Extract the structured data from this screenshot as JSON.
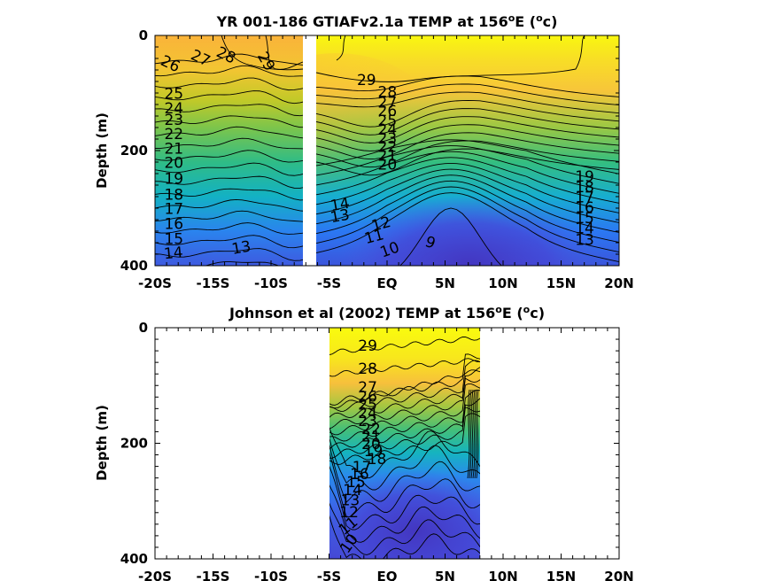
{
  "chart_data": [
    {
      "type": "heatmap",
      "title_main": "YR 001-186 GTIAFv2.1a TEMP at 156",
      "title_sup": "o",
      "title_mid": "E (",
      "title_sup2": "o",
      "title_end": "c)",
      "ylabel": "Depth (m)",
      "xlim": [
        -20,
        20
      ],
      "ylim": [
        400,
        0
      ],
      "x_ticks": [
        {
          "value": -20,
          "label": "-20S"
        },
        {
          "value": -15,
          "label": "-15S"
        },
        {
          "value": -10,
          "label": "-10S"
        },
        {
          "value": -5,
          "label": "-5S"
        },
        {
          "value": 0,
          "label": "EQ"
        },
        {
          "value": 5,
          "label": "5N"
        },
        {
          "value": 10,
          "label": "10N"
        },
        {
          "value": 15,
          "label": "15N"
        },
        {
          "value": 20,
          "label": "20N"
        }
      ],
      "y_ticks": [
        0,
        200,
        400
      ],
      "gap_lon": [
        -7.3,
        -6.5
      ],
      "contour_levels": [
        9,
        10,
        11,
        12,
        13,
        14,
        15,
        16,
        17,
        18,
        19,
        20,
        21,
        22,
        23,
        24,
        25,
        26,
        27,
        28,
        29
      ],
      "contour_labels": [
        {
          "x": -19.6,
          "y": 50,
          "t": "26",
          "r": 25
        },
        {
          "x": -17.0,
          "y": 40,
          "t": "27",
          "r": 25
        },
        {
          "x": -14.8,
          "y": 35,
          "t": "28",
          "r": 25
        },
        {
          "x": -11.2,
          "y": 35,
          "t": "29",
          "r": 60
        },
        {
          "x": -19.2,
          "y": 110,
          "t": "25",
          "r": 0
        },
        {
          "x": -19.2,
          "y": 135,
          "t": "24",
          "r": 0
        },
        {
          "x": -19.2,
          "y": 155,
          "t": "23",
          "r": 0
        },
        {
          "x": -19.2,
          "y": 180,
          "t": "22",
          "r": 0
        },
        {
          "x": -19.2,
          "y": 205,
          "t": "21",
          "r": 0
        },
        {
          "x": -19.2,
          "y": 230,
          "t": "20",
          "r": 0
        },
        {
          "x": -19.2,
          "y": 258,
          "t": "19",
          "r": 0
        },
        {
          "x": -19.2,
          "y": 285,
          "t": "18",
          "r": 0
        },
        {
          "x": -19.2,
          "y": 310,
          "t": "17",
          "r": 0
        },
        {
          "x": -19.2,
          "y": 336,
          "t": "16",
          "r": 0
        },
        {
          "x": -19.2,
          "y": 362,
          "t": "15",
          "r": 0
        },
        {
          "x": -19.2,
          "y": 388,
          "t": "14",
          "r": -5
        },
        {
          "x": -13.3,
          "y": 380,
          "t": "13",
          "r": -10
        },
        {
          "x": -2.6,
          "y": 86,
          "t": "29",
          "r": 0
        },
        {
          "x": -0.8,
          "y": 107,
          "t": "28",
          "r": 0
        },
        {
          "x": -0.8,
          "y": 125,
          "t": "27",
          "r": 0
        },
        {
          "x": -0.8,
          "y": 140,
          "t": "26",
          "r": 0
        },
        {
          "x": -0.8,
          "y": 157,
          "t": "25",
          "r": 0
        },
        {
          "x": -0.8,
          "y": 172,
          "t": "24",
          "r": 0
        },
        {
          "x": -0.8,
          "y": 188,
          "t": "23",
          "r": 0
        },
        {
          "x": -0.8,
          "y": 202,
          "t": "22",
          "r": 0
        },
        {
          "x": -0.8,
          "y": 218,
          "t": "21",
          "r": 0
        },
        {
          "x": -0.8,
          "y": 233,
          "t": "20",
          "r": 0
        },
        {
          "x": -4.8,
          "y": 305,
          "t": "14",
          "r": -10
        },
        {
          "x": -4.8,
          "y": 325,
          "t": "13",
          "r": -10
        },
        {
          "x": -1.2,
          "y": 340,
          "t": "12",
          "r": -15
        },
        {
          "x": -1.8,
          "y": 362,
          "t": "11",
          "r": -15
        },
        {
          "x": -0.4,
          "y": 386,
          "t": "10",
          "r": -20
        },
        {
          "x": 3.2,
          "y": 365,
          "t": "9",
          "r": 20
        },
        {
          "x": 16.2,
          "y": 254,
          "t": "19",
          "r": 0
        },
        {
          "x": 16.2,
          "y": 272,
          "t": "18",
          "r": 0
        },
        {
          "x": 16.2,
          "y": 290,
          "t": "17",
          "r": 0
        },
        {
          "x": 16.2,
          "y": 308,
          "t": "16",
          "r": 0
        },
        {
          "x": 16.2,
          "y": 326,
          "t": "15",
          "r": 0
        },
        {
          "x": 16.2,
          "y": 344,
          "t": "14",
          "r": 0
        },
        {
          "x": 16.2,
          "y": 364,
          "t": "13",
          "r": 0
        }
      ]
    },
    {
      "type": "heatmap",
      "title_main": "Johnson et al (2002) TEMP at 156",
      "title_sup": "o",
      "title_mid": "E (",
      "title_sup2": "o",
      "title_end": "c)",
      "ylabel": "Depth (m)",
      "xlim": [
        -20,
        20
      ],
      "ylim": [
        400,
        0
      ],
      "x_ticks": [
        {
          "value": -20,
          "label": "-20S"
        },
        {
          "value": -15,
          "label": "-15S"
        },
        {
          "value": -10,
          "label": "-10S"
        },
        {
          "value": -5,
          "label": "-5S"
        },
        {
          "value": 0,
          "label": "EQ"
        },
        {
          "value": 5,
          "label": "5N"
        },
        {
          "value": 10,
          "label": "10N"
        },
        {
          "value": 15,
          "label": "15N"
        },
        {
          "value": 20,
          "label": "20N"
        }
      ],
      "y_ticks": [
        0,
        200,
        400
      ],
      "data_lon_range": [
        -5,
        8
      ],
      "contour_levels": [
        10,
        11,
        12,
        13,
        14,
        15,
        16,
        17,
        18,
        19,
        20,
        21,
        22,
        23,
        24,
        25,
        26,
        27,
        28,
        29
      ],
      "contour_labels": [
        {
          "x": -2.5,
          "y": 40,
          "t": "29",
          "r": 0
        },
        {
          "x": -2.5,
          "y": 80,
          "t": "28",
          "r": 0
        },
        {
          "x": -2.5,
          "y": 112,
          "t": "27",
          "r": 0
        },
        {
          "x": -2.5,
          "y": 128,
          "t": "26",
          "r": 0
        },
        {
          "x": -2.5,
          "y": 142,
          "t": "25",
          "r": 0
        },
        {
          "x": -2.5,
          "y": 156,
          "t": "24",
          "r": 0
        },
        {
          "x": -2.5,
          "y": 170,
          "t": "23",
          "r": 0
        },
        {
          "x": -2.2,
          "y": 184,
          "t": "22",
          "r": 0
        },
        {
          "x": -2.2,
          "y": 197,
          "t": "21",
          "r": 0
        },
        {
          "x": -2.2,
          "y": 210,
          "t": "20",
          "r": 0
        },
        {
          "x": -2.0,
          "y": 222,
          "t": "19",
          "r": 0
        },
        {
          "x": -1.7,
          "y": 236,
          "t": "18",
          "r": 0
        },
        {
          "x": -3.0,
          "y": 250,
          "t": "17",
          "r": 0
        },
        {
          "x": -3.2,
          "y": 262,
          "t": "16",
          "r": 0
        },
        {
          "x": -3.5,
          "y": 276,
          "t": "15",
          "r": 0
        },
        {
          "x": -3.8,
          "y": 290,
          "t": "14",
          "r": 0
        },
        {
          "x": -4.0,
          "y": 307,
          "t": "13",
          "r": 0
        },
        {
          "x": -4.1,
          "y": 328,
          "t": "12",
          "r": 0
        },
        {
          "x": -3.7,
          "y": 360,
          "t": "11",
          "r": -40
        },
        {
          "x": -3.4,
          "y": 392,
          "t": "10",
          "r": -55
        }
      ]
    }
  ],
  "colors": {
    "yellow": "#f9fb0e",
    "orange": "#fbbf3b",
    "green": "#1ebd8f",
    "cyan": "#14b4c0",
    "blue": "#2a7cf6",
    "indigo": "#4a4bd9",
    "navy": "#3e26a8"
  }
}
